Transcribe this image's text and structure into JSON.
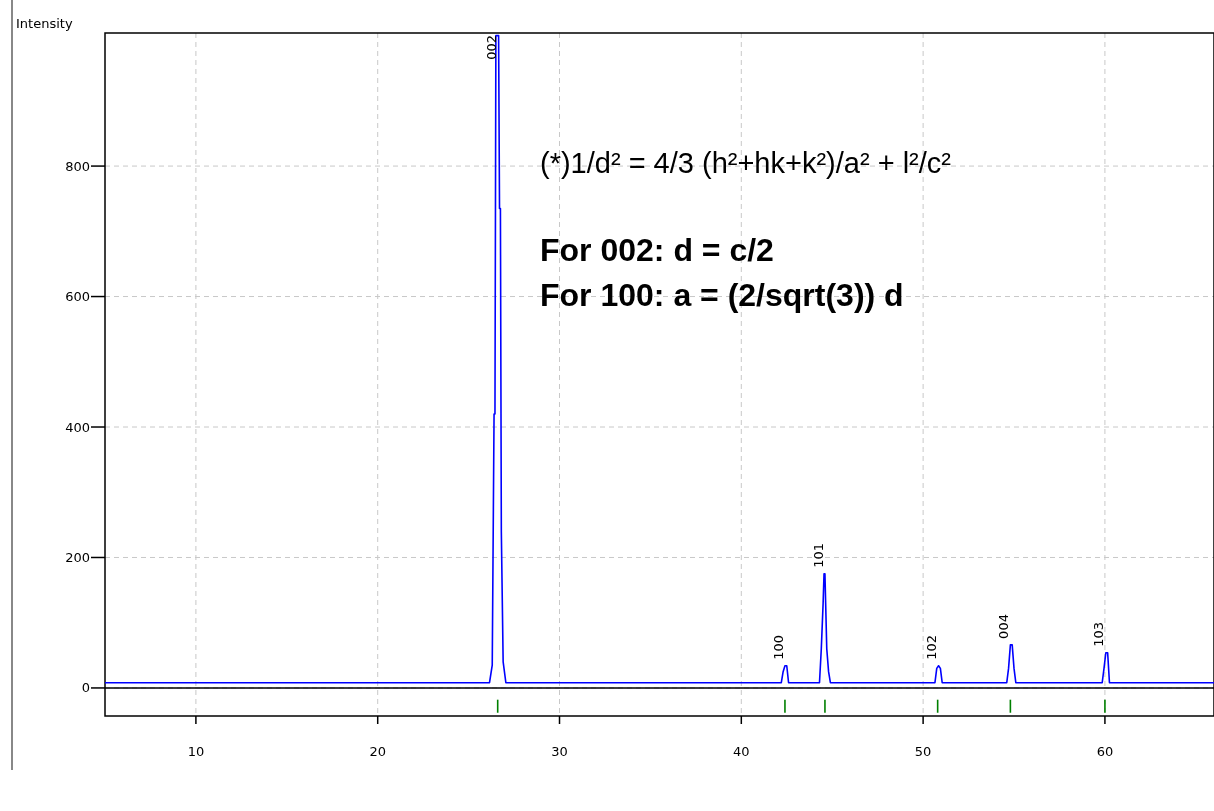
{
  "chart_data": {
    "type": "line",
    "ylabel": "Intensity",
    "xlim": [
      5,
      66
    ],
    "ylim": [
      -43,
      1004
    ],
    "xticks": [
      10,
      20,
      30,
      40,
      50,
      60
    ],
    "yticks": [
      0,
      200,
      400,
      600,
      800
    ],
    "grid": true,
    "marker": "none",
    "series": [
      {
        "color": "#0000ff",
        "x": [
          5,
          26.15,
          26.3,
          26.4,
          26.45,
          26.5,
          26.55,
          26.65,
          26.7,
          26.75,
          26.8,
          26.9,
          27.05,
          42.2,
          42.3,
          42.4,
          42.5,
          42.6,
          42.7,
          44.3,
          44.4,
          44.5,
          44.55,
          44.6,
          44.7,
          44.8,
          44.9,
          50.65,
          50.75,
          50.85,
          50.95,
          51.05,
          54.6,
          54.7,
          54.8,
          54.9,
          55.0,
          55.1,
          59.85,
          59.95,
          60.05,
          60.15,
          60.25,
          66
        ],
        "values": [
          8,
          8,
          35,
          420,
          420,
          1000,
          1000,
          1000,
          735,
          735,
          240,
          40,
          8,
          8,
          25,
          34,
          34,
          8,
          8,
          8,
          60,
          130,
          175,
          175,
          60,
          25,
          8,
          8,
          30,
          34,
          30,
          8,
          8,
          30,
          66,
          66,
          30,
          8,
          8,
          30,
          54,
          54,
          8,
          8
        ]
      },
      {
        "type": "bar",
        "color": "#008000",
        "x": [
          26.6,
          42.4,
          44.6,
          50.8,
          54.8,
          60.0
        ],
        "base": [
          -38,
          -38,
          -38,
          -38,
          -38,
          -38
        ],
        "values": [
          20,
          20,
          20,
          20,
          20,
          20
        ]
      }
    ],
    "annotations": [
      {
        "text": "002",
        "x": 26.6,
        "y": 1000
      },
      {
        "text": "100",
        "x": 42.4,
        "y": 34
      },
      {
        "text": "101",
        "x": 44.6,
        "y": 175
      },
      {
        "text": "102",
        "x": 50.8,
        "y": 34
      },
      {
        "text": "004",
        "x": 54.8,
        "y": 66
      },
      {
        "text": "103",
        "x": 60.0,
        "y": 54
      },
      "(*)1/d² = 4/3 (h²+hk+k²)/a² + l²/c²",
      "For 002: d = c/2",
      "For 100: a = (2/sqrt(3)) d"
    ]
  }
}
